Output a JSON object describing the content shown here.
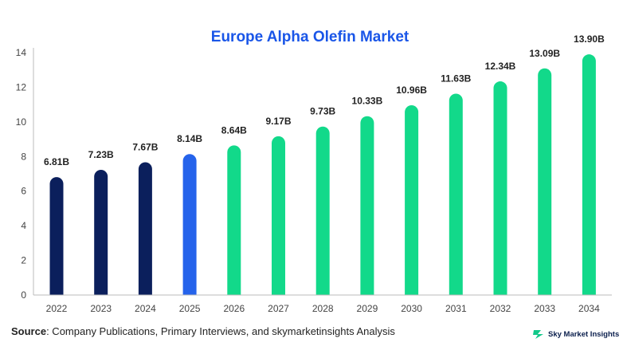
{
  "chart_data": {
    "type": "bar",
    "title": "Europe Alpha Olefin Market",
    "xlabel": "",
    "ylabel": "",
    "categories": [
      "2022",
      "2023",
      "2024",
      "2025",
      "2026",
      "2027",
      "2028",
      "2029",
      "2030",
      "2031",
      "2032",
      "2033",
      "2034"
    ],
    "values": [
      6.81,
      7.23,
      7.67,
      8.14,
      8.64,
      9.17,
      9.73,
      10.33,
      10.96,
      11.63,
      12.34,
      13.09,
      13.9
    ],
    "data_labels": [
      "6.81B",
      "7.23B",
      "7.67B",
      "8.14B",
      "8.64B",
      "9.17B",
      "9.73B",
      "10.33B",
      "10.96B",
      "11.63B",
      "12.34B",
      "13.09B",
      "13.90B"
    ],
    "ylim": [
      0,
      14
    ],
    "yticks": [
      0,
      2,
      4,
      6,
      8,
      10,
      12,
      14
    ],
    "grid": false,
    "bar_colors": [
      "#0b1f5c",
      "#0b1f5c",
      "#0b1f5c",
      "#2563eb",
      "#12d98a",
      "#12d98a",
      "#12d98a",
      "#12d98a",
      "#12d98a",
      "#12d98a",
      "#12d98a",
      "#12d98a",
      "#12d98a"
    ]
  },
  "colors": {
    "title": "#1a56e8",
    "axis": "#bbbbbb",
    "brand_icon": "#12c98a"
  },
  "source": {
    "label": "Source",
    "text": ": Company Publications, Primary Interviews, and skymarketinsights Analysis"
  },
  "brand": {
    "name": "Sky Market Insights",
    "icon": "sky-market-logo-icon"
  }
}
